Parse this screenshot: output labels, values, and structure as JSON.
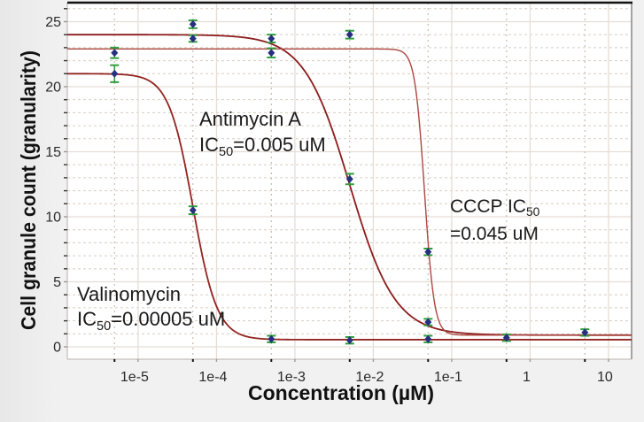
{
  "chart_data": {
    "type": "line",
    "subtype": "dose-response curves (log x-axis) with fitted sigmoids and data points with error bars",
    "title": "",
    "xlabel": "Concentration (µM)",
    "ylabel": "Cell granule count (granularity)",
    "xscale": "log",
    "xlim": [
      1.25e-06,
      19.7
    ],
    "ylim": [
      -0.95,
      26.46
    ],
    "grid": true,
    "legend": null,
    "x_ticks": [
      1e-05,
      0.0001,
      0.001,
      0.01,
      0.1,
      1,
      10
    ],
    "x_tick_labels": [
      "1e-5",
      "1e-4",
      "1e-3",
      "1e-2",
      "1e-1",
      "1",
      "10"
    ],
    "y_ticks": [
      0,
      5,
      10,
      15,
      20,
      25
    ],
    "y_tick_labels": [
      "0",
      "5",
      "10",
      "15",
      "20",
      "25"
    ],
    "concentrations": [
      5e-06,
      5e-05,
      0.0005,
      0.005,
      0.05,
      0.5,
      5
    ],
    "series": [
      {
        "name": "Valinomycin",
        "ic50": 5e-05,
        "top": 21.0,
        "bottom": 0.55,
        "hill": 2.8,
        "color": "#932420",
        "width": 1.8,
        "points": [
          {
            "x": 5e-06,
            "y": 21.0,
            "err": 0.55
          },
          {
            "x": 5e-05,
            "y": 10.5,
            "err": 0.2
          },
          {
            "x": 0.0005,
            "y": 0.6,
            "err": 0.15
          },
          {
            "x": 0.005,
            "y": 0.5,
            "err": 0.15
          },
          {
            "x": 0.05,
            "y": 0.6,
            "err": 0.15
          }
        ]
      },
      {
        "name": "Antimycin A",
        "ic50": 0.005,
        "top": 24.0,
        "bottom": 0.9,
        "hill": 1.5,
        "color": "#8c1c1c",
        "width": 1.8,
        "points": [
          {
            "x": 5e-05,
            "y": 23.7,
            "err": 0.15
          },
          {
            "x": 0.0005,
            "y": 23.7,
            "err": 0.2
          },
          {
            "x": 0.005,
            "y": 12.9,
            "err": 0.3
          },
          {
            "x": 0.05,
            "y": 1.9,
            "err": 0.15
          },
          {
            "x": 5,
            "y": 1.1,
            "err": 0.15
          }
        ]
      },
      {
        "name": "CCCP",
        "ic50": 0.045,
        "top": 22.9,
        "bottom": 0.9,
        "hill": 7,
        "color": "#ac4740",
        "width": 1.4,
        "points": [
          {
            "x": 5e-06,
            "y": 22.6,
            "err": 0.3
          },
          {
            "x": 5e-05,
            "y": 24.8,
            "err": 0.2
          },
          {
            "x": 0.0005,
            "y": 22.6,
            "err": 0.25
          },
          {
            "x": 0.005,
            "y": 24.0,
            "err": 0.2
          },
          {
            "x": 0.05,
            "y": 7.3,
            "err": 0.15
          },
          {
            "x": 0.5,
            "y": 0.7,
            "err": 0.15
          }
        ]
      }
    ],
    "annotations": [
      {
        "l1_pre": "Antimycin A",
        "l1_sub": "",
        "l1_post": "",
        "l2_pre": "IC",
        "l2_sub": "50",
        "l2_post": "=0.005 uM"
      },
      {
        "l1_pre": "CCCP IC",
        "l1_sub": "50",
        "l1_post": "",
        "l2_pre": "=0.045 uM",
        "l2_sub": "",
        "l2_post": ""
      },
      {
        "l1_pre": "Valinomycin",
        "l1_sub": "",
        "l1_post": "",
        "l2_pre": "IC",
        "l2_sub": "50",
        "l2_post": "=0.00005 uM"
      }
    ]
  },
  "colors": {
    "background": "#f1f1f1",
    "plot_background": "#ffffff",
    "grid_major": "#e6ddd5",
    "grid_minor": "#d8cdc4",
    "grid_conc": "#cbbcb0",
    "marker": "#27307f",
    "errorbar": "#2f9e3c",
    "frame_top": "#111111",
    "frame": "#b9b1aa"
  }
}
